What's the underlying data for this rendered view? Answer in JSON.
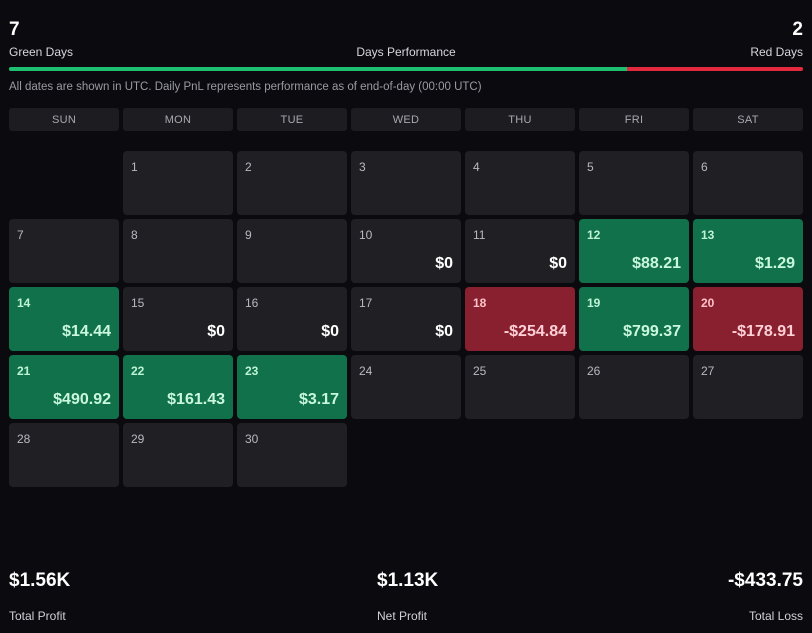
{
  "summary": {
    "green_days_count": "7",
    "green_days_label": "Green Days",
    "title": "Days Performance",
    "red_days_count": "2",
    "red_days_label": "Red Days",
    "green_fraction": 0.7778,
    "note": "All dates are shown in UTC. Daily PnL represents performance as of end-of-day (00:00 UTC)"
  },
  "colors": {
    "green": "#1fbf72",
    "red": "#e2293e",
    "positive_cell": "#11714a",
    "negative_cell": "#892030",
    "neutral_cell": "#202024"
  },
  "weekdays": [
    "SUN",
    "MON",
    "TUE",
    "WED",
    "THU",
    "FRI",
    "SAT"
  ],
  "calendar": {
    "leading_blank_days": 1,
    "days": [
      {
        "day": "1",
        "pnl": "",
        "status": "none"
      },
      {
        "day": "2",
        "pnl": "",
        "status": "none"
      },
      {
        "day": "3",
        "pnl": "",
        "status": "none"
      },
      {
        "day": "4",
        "pnl": "",
        "status": "none"
      },
      {
        "day": "5",
        "pnl": "",
        "status": "none"
      },
      {
        "day": "6",
        "pnl": "",
        "status": "none"
      },
      {
        "day": "7",
        "pnl": "",
        "status": "none"
      },
      {
        "day": "8",
        "pnl": "",
        "status": "none"
      },
      {
        "day": "9",
        "pnl": "",
        "status": "none"
      },
      {
        "day": "10",
        "pnl": "$0",
        "status": "zero"
      },
      {
        "day": "11",
        "pnl": "$0",
        "status": "zero"
      },
      {
        "day": "12",
        "pnl": "$88.21",
        "status": "positive"
      },
      {
        "day": "13",
        "pnl": "$1.29",
        "status": "positive"
      },
      {
        "day": "14",
        "pnl": "$14.44",
        "status": "positive"
      },
      {
        "day": "15",
        "pnl": "$0",
        "status": "zero"
      },
      {
        "day": "16",
        "pnl": "$0",
        "status": "zero"
      },
      {
        "day": "17",
        "pnl": "$0",
        "status": "zero"
      },
      {
        "day": "18",
        "pnl": "-$254.84",
        "status": "negative"
      },
      {
        "day": "19",
        "pnl": "$799.37",
        "status": "positive"
      },
      {
        "day": "20",
        "pnl": "-$178.91",
        "status": "negative"
      },
      {
        "day": "21",
        "pnl": "$490.92",
        "status": "positive"
      },
      {
        "day": "22",
        "pnl": "$161.43",
        "status": "positive"
      },
      {
        "day": "23",
        "pnl": "$3.17",
        "status": "positive"
      },
      {
        "day": "24",
        "pnl": "",
        "status": "none"
      },
      {
        "day": "25",
        "pnl": "",
        "status": "none"
      },
      {
        "day": "26",
        "pnl": "",
        "status": "none"
      },
      {
        "day": "27",
        "pnl": "",
        "status": "none"
      },
      {
        "day": "28",
        "pnl": "",
        "status": "none"
      },
      {
        "day": "29",
        "pnl": "",
        "status": "none"
      },
      {
        "day": "30",
        "pnl": "",
        "status": "none"
      }
    ]
  },
  "totals": {
    "total_profit_value": "$1.56K",
    "total_profit_label": "Total Profit",
    "net_profit_value": "$1.13K",
    "net_profit_label": "Net Profit",
    "total_loss_value": "-$433.75",
    "total_loss_label": "Total Loss"
  }
}
